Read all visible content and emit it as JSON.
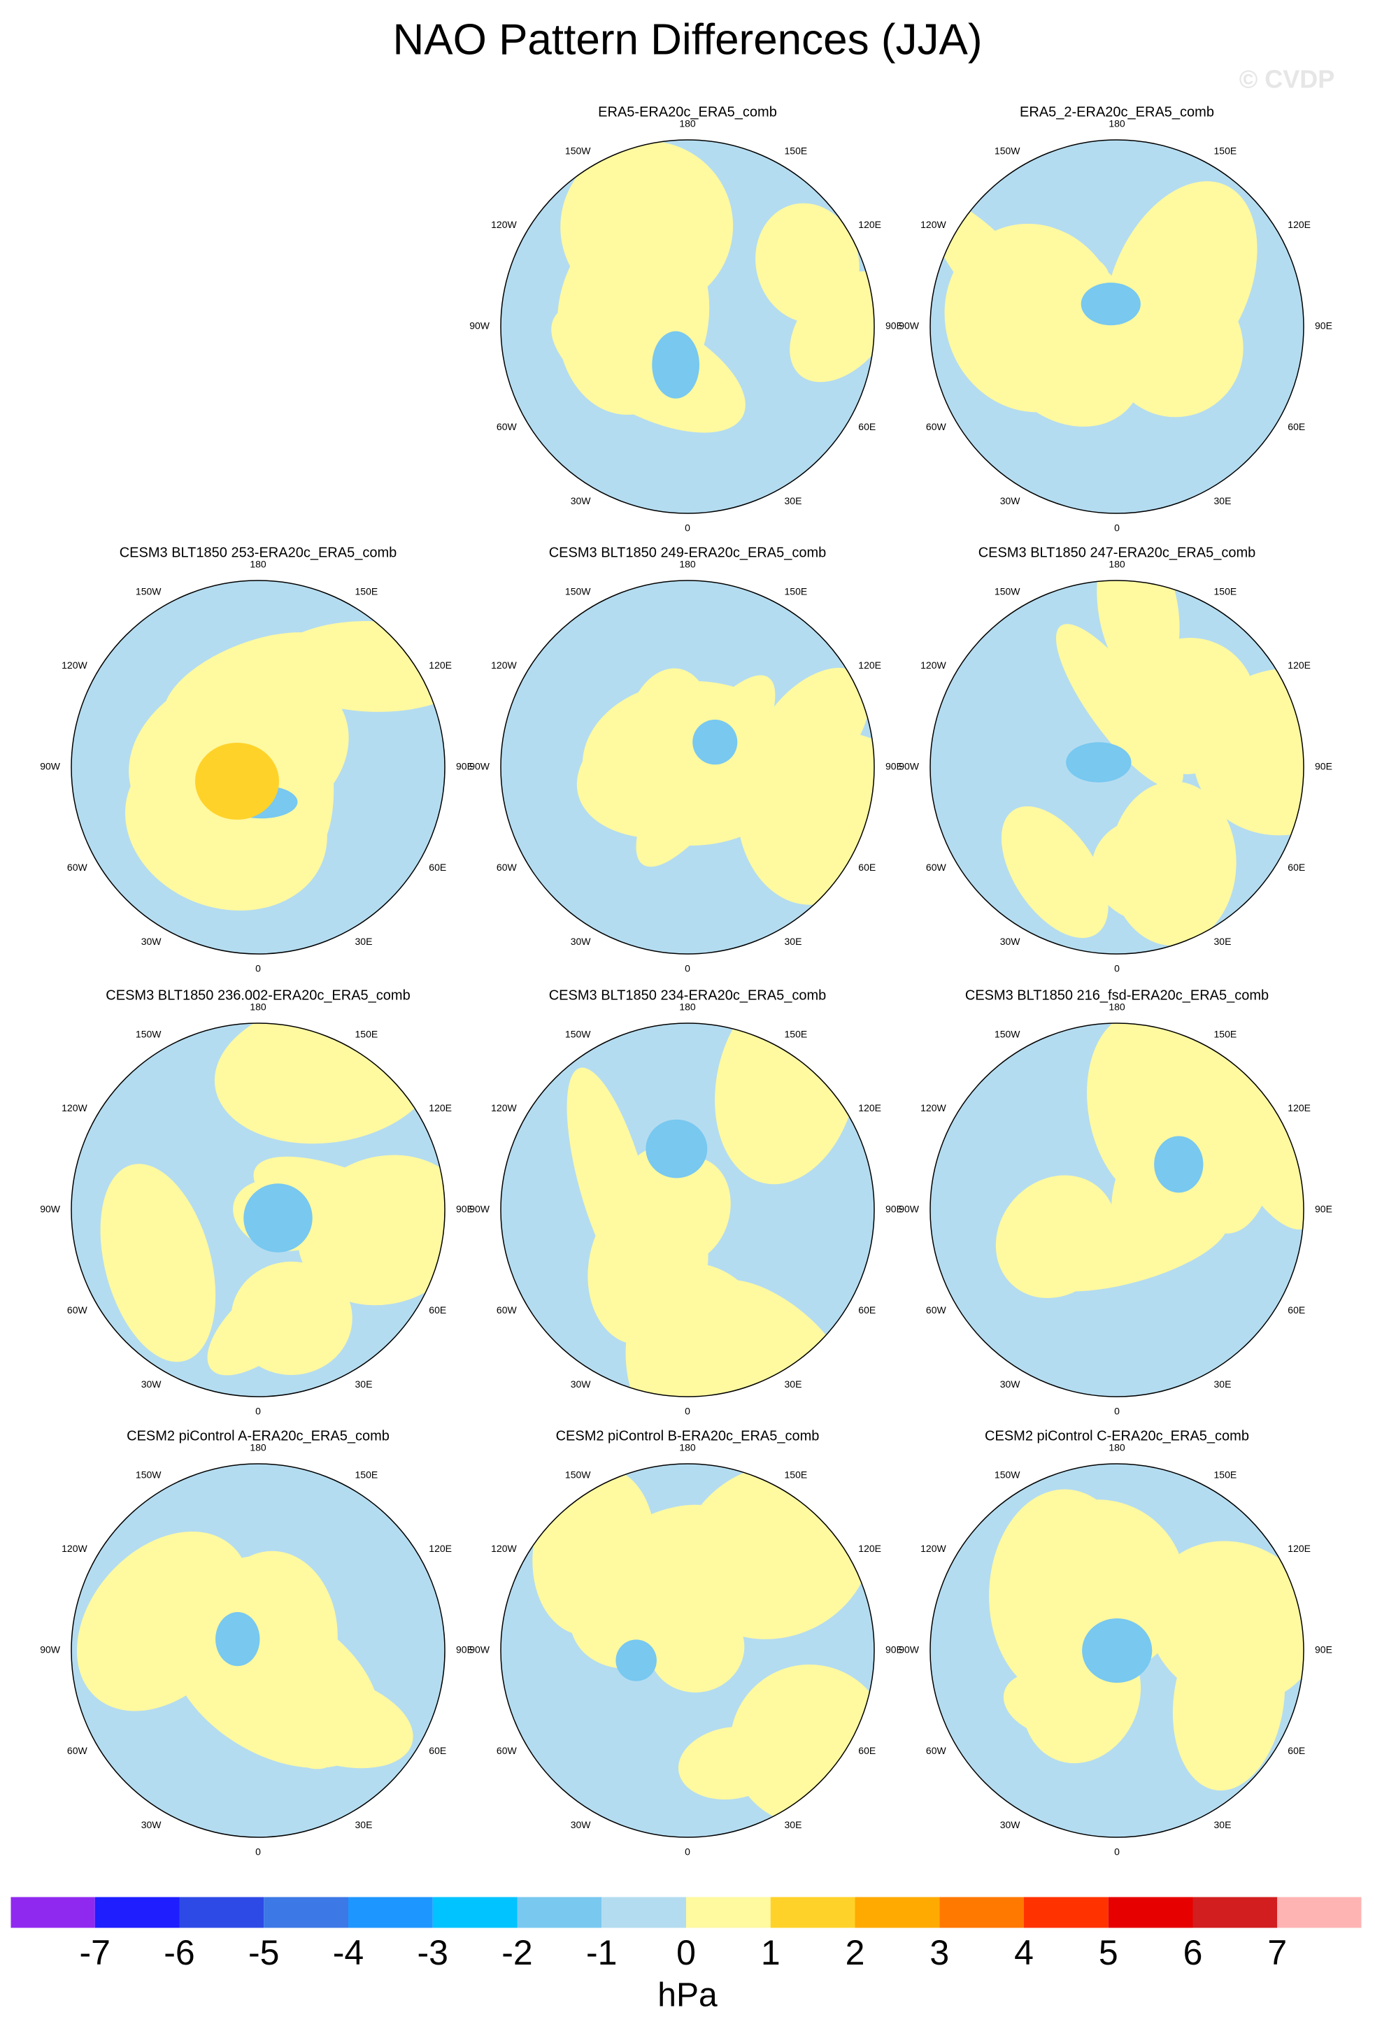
{
  "title": "NAO Pattern Differences (JJA)",
  "watermark": "© CVDP",
  "panels": [
    {
      "title": "ERA5-ERA20c_ERA5_comb"
    },
    {
      "title": "ERA5_2-ERA20c_ERA5_comb"
    },
    {
      "title": "CESM3 BLT1850 253-ERA20c_ERA5_comb"
    },
    {
      "title": "CESM3 BLT1850 249-ERA20c_ERA5_comb"
    },
    {
      "title": "CESM3 BLT1850 247-ERA20c_ERA5_comb"
    },
    {
      "title": "CESM3 BLT1850 236.002-ERA20c_ERA5_comb"
    },
    {
      "title": "CESM3 BLT1850 234-ERA20c_ERA5_comb"
    },
    {
      "title": "CESM3 BLT1850 216_fsd-ERA20c_ERA5_comb"
    },
    {
      "title": "CESM2 piControl A-ERA20c_ERA5_comb"
    },
    {
      "title": "CESM2 piControl B-ERA20c_ERA5_comb"
    },
    {
      "title": "CESM2 piControl C-ERA20c_ERA5_comb"
    }
  ],
  "lon_labels": [
    "180",
    "150E",
    "120E",
    "90E",
    "60E",
    "30E",
    "0",
    "30W",
    "60W",
    "90W",
    "120W",
    "150W"
  ],
  "colorbar": {
    "colors": [
      "#9029f0",
      "#1e1eff",
      "#2d4ae6",
      "#3c78e6",
      "#1e96ff",
      "#00c3ff",
      "#78c8f0",
      "#b4dcf0",
      "#fff9a0",
      "#ffd22a",
      "#ffaa00",
      "#ff7800",
      "#ff3200",
      "#e60000",
      "#d21e1e",
      "#ffb4b4"
    ],
    "ticks": [
      -7,
      -6,
      -5,
      -4,
      -3,
      -2,
      -1,
      0,
      1,
      2,
      3,
      4,
      5,
      6,
      7
    ],
    "unit": "hPa"
  }
}
